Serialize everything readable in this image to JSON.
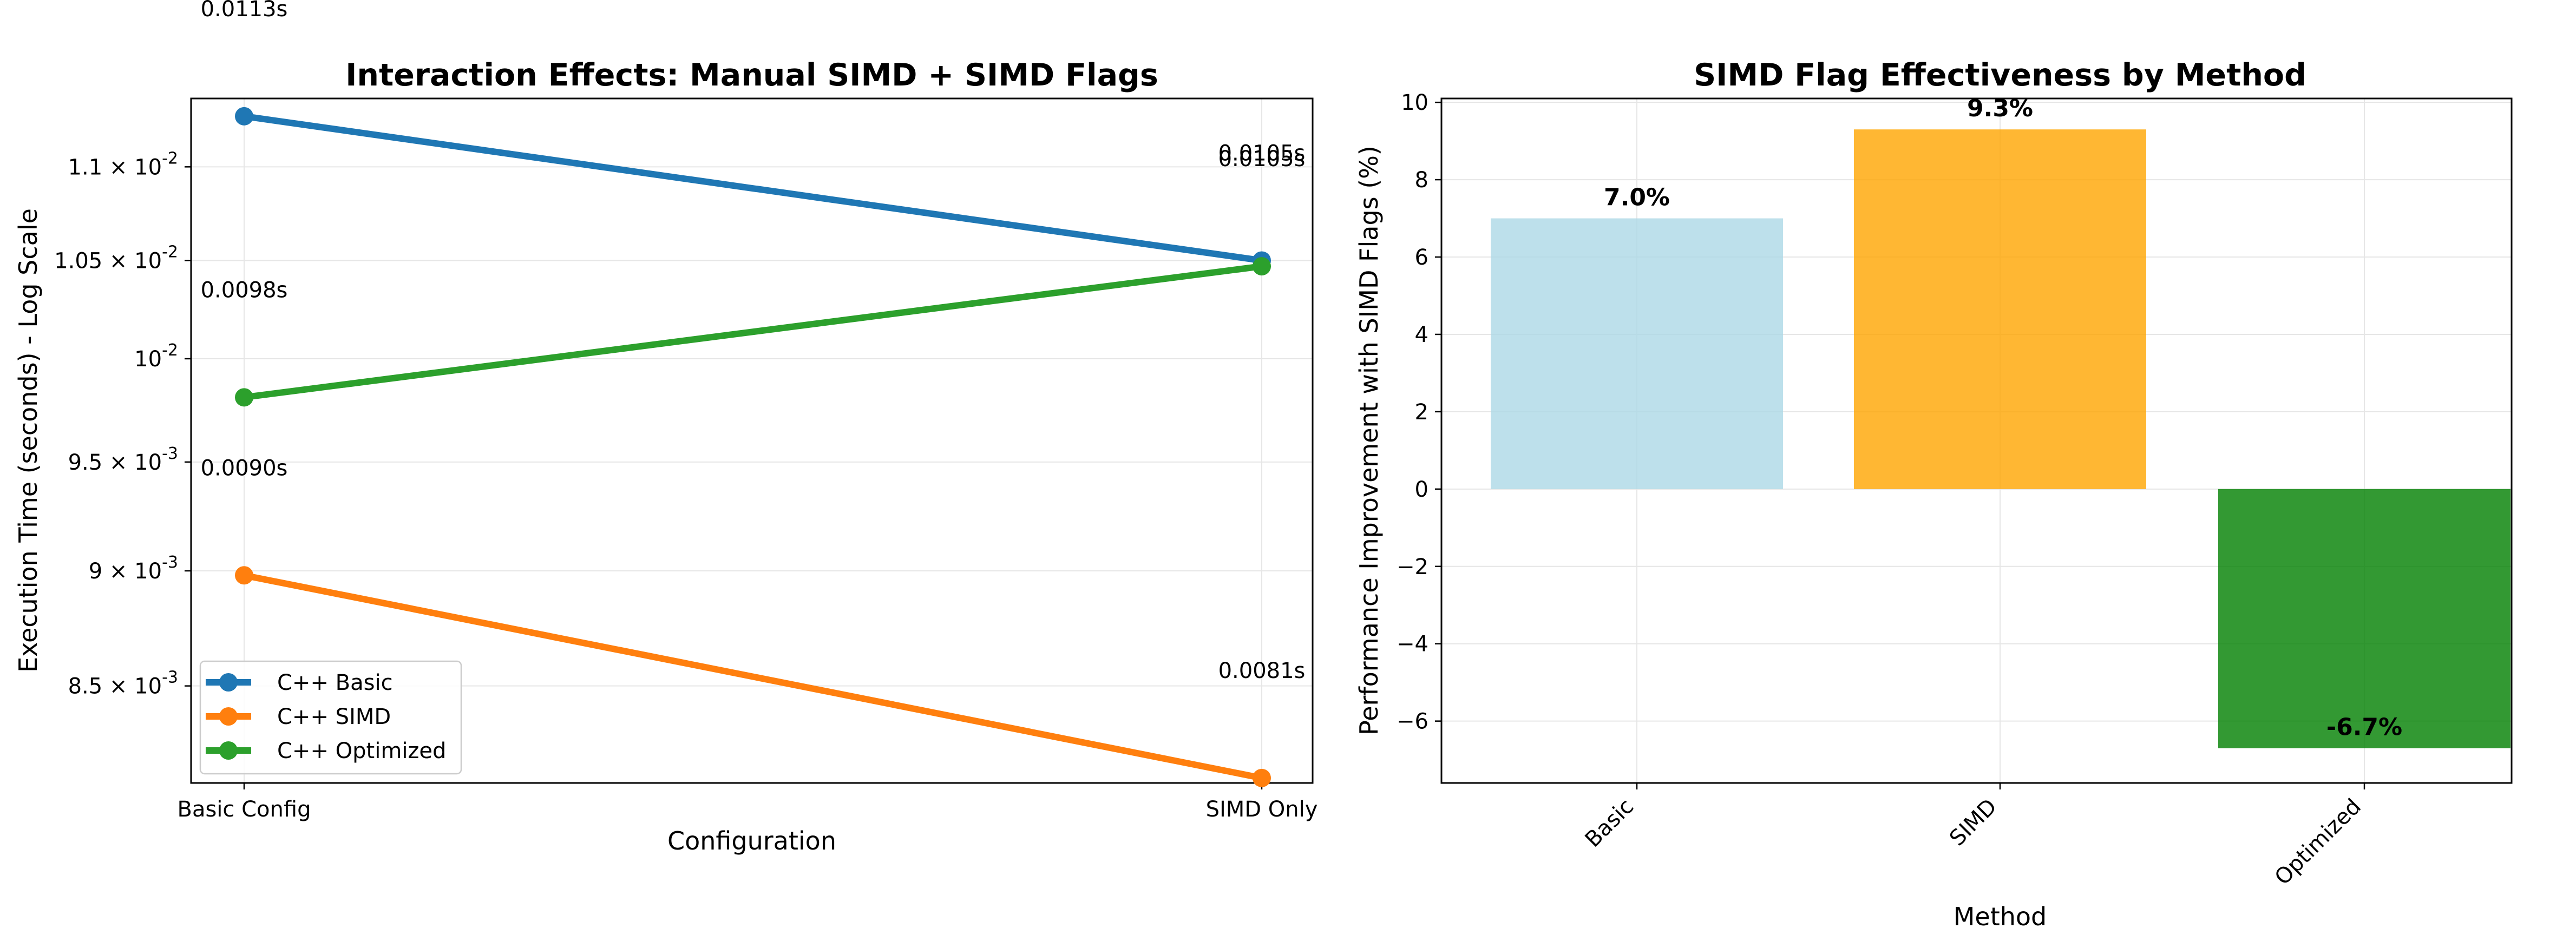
{
  "chart_data": [
    {
      "type": "line",
      "title": "Interaction Effects: Manual SIMD + SIMD Flags",
      "xlabel": "Configuration",
      "ylabel": "Execution Time (seconds) - Log Scale",
      "categories": [
        "Basic Config",
        "SIMD Only"
      ],
      "yscale": "log",
      "ylim": [
        0.0081,
        0.01138
      ],
      "yticks": [
        {
          "value": 0.0085,
          "mant": "8.5",
          "exp": "-3"
        },
        {
          "value": 0.009,
          "mant": "9",
          "exp": "-3"
        },
        {
          "value": 0.0095,
          "mant": "9.5",
          "exp": "-3"
        },
        {
          "value": 0.01,
          "mant": "",
          "exp": "-2"
        },
        {
          "value": 0.0105,
          "mant": "1.05",
          "exp": "-2"
        },
        {
          "value": 0.011,
          "mant": "1.1",
          "exp": "-2"
        }
      ],
      "grid": true,
      "legend_position": "lower-left",
      "series": [
        {
          "name": "C++ Basic",
          "color": "#1f77b4",
          "values": [
            0.01128,
            0.0105
          ],
          "labels": [
            "0.0113s",
            "0.0105s"
          ]
        },
        {
          "name": "C++ SIMD",
          "color": "#ff7f0e",
          "values": [
            0.00898,
            0.00812
          ],
          "labels": [
            "0.0090s",
            "0.0081s"
          ]
        },
        {
          "name": "C++ Optimized",
          "color": "#2ca02c",
          "values": [
            0.00981,
            0.01047
          ],
          "labels": [
            "0.0098s",
            "0.0105s"
          ]
        }
      ]
    },
    {
      "type": "bar",
      "title": "SIMD Flag Effectiveness by Method",
      "xlabel": "Method",
      "ylabel": "Performance Improvement with SIMD Flags (%)",
      "categories": [
        "Basic",
        "SIMD",
        "Optimized"
      ],
      "values": [
        7.0,
        9.3,
        -6.7
      ],
      "value_labels": [
        "7.0%",
        "9.3%",
        "-6.7%"
      ],
      "colors": [
        "#add8e6",
        "#ffa500",
        "#008000"
      ],
      "ylim": [
        -7.6,
        10.1
      ],
      "yticks": [
        -6,
        -4,
        -2,
        0,
        2,
        4,
        6,
        8,
        10
      ],
      "grid": true
    }
  ]
}
